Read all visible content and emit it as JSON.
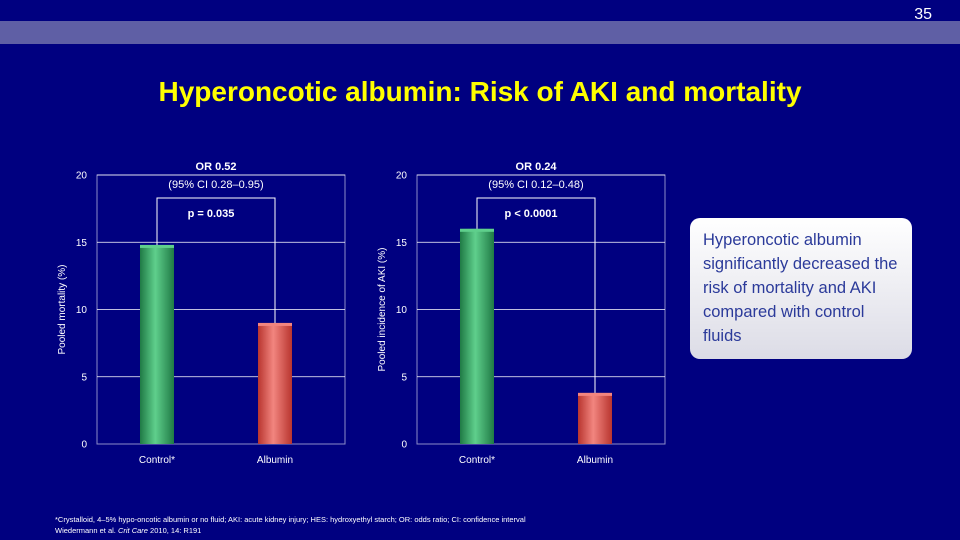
{
  "slide_number": "35",
  "title": "Hyperoncotic albumin: Risk of AKI and mortality",
  "callout": "Hyperoncotic albumin significantly decreased the risk of mortality and AKI compared with control fluids",
  "footnotes": {
    "line1": "*Crystalloid, 4–5% hypo-oncotic albumin or no fluid; AKI: acute kidney injury; HES: hydroxyethyl starch; OR: odds ratio; CI: confidence interval",
    "line2_prefix": "Wiedermann et al. ",
    "line2_journal": "Crit Care",
    "line2_suffix": " 2010, 14: R191"
  },
  "colors": {
    "background": "#000080",
    "title": "#ffff00",
    "control_bar": "#2e9e5e",
    "albumin_bar": "#e0504a"
  },
  "chart_data": [
    {
      "type": "bar",
      "categories": [
        "Control*",
        "Albumin"
      ],
      "values": [
        14.8,
        9.0
      ],
      "ylabel": "Pooled mortality (%)",
      "ylim": [
        0,
        20
      ],
      "yticks": [
        0,
        5,
        10,
        15,
        20
      ],
      "grid": true,
      "annotations": {
        "or": "OR 0.52",
        "ci": "(95% CI 0.28–0.95)",
        "p": "p = 0.035"
      }
    },
    {
      "type": "bar",
      "categories": [
        "Control*",
        "Albumin"
      ],
      "values": [
        16.0,
        3.8
      ],
      "ylabel": "Pooled incidence of AKI (%)",
      "ylim": [
        0,
        20
      ],
      "yticks": [
        0,
        5,
        10,
        15,
        20
      ],
      "grid": true,
      "annotations": {
        "or": "OR 0.24",
        "ci": "(95% CI 0.12–0.48)",
        "p": "p < 0.0001"
      }
    }
  ]
}
